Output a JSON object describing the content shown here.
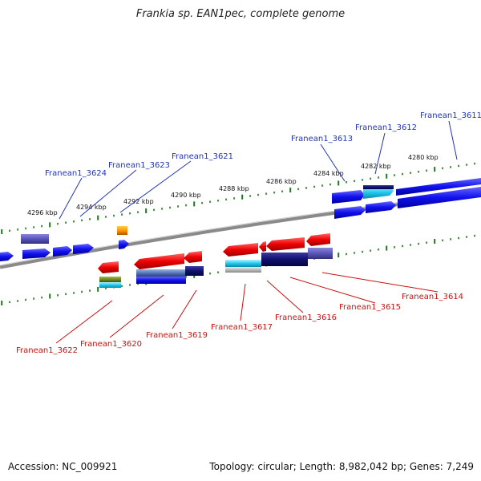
{
  "title": "Frankia sp. EAN1pec, complete genome",
  "footer": {
    "accession": "Accession: NC_009921",
    "topology": "Topology: circular; Length: 8,982,042 bp; Genes: 7,249"
  },
  "kbp_labels": [
    "4296 kbp",
    "4294 kbp",
    "4292 kbp",
    "4290 kbp",
    "4288 kbp",
    "4286 kbp",
    "4284 kbp",
    "4282 kbp",
    "4280 kbp"
  ],
  "forward_genes": [
    "Franean1_3624",
    "Franean1_3623",
    "Franean1_3621",
    "Franean1_3613",
    "Franean1_3612",
    "Franean1_3611"
  ],
  "reverse_genes": [
    "Franean1_3622",
    "Franean1_3620",
    "Franean1_3619",
    "Franean1_3617",
    "Franean1_3616",
    "Franean1_3615",
    "Franean1_3614"
  ],
  "colors": {
    "forward": "#1a1aee",
    "reverse": "#ee1111",
    "backbone": "#888888",
    "ticks": "#1a7a1a",
    "forward_label": "#2233bb",
    "reverse_label": "#cc1111"
  }
}
